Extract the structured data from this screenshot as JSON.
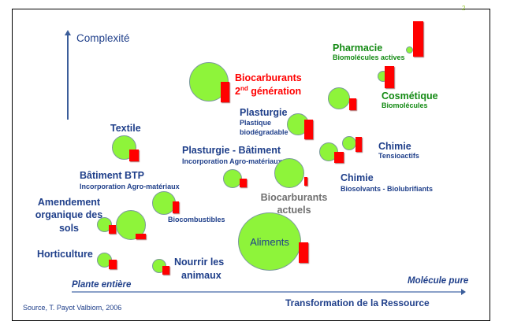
{
  "page_number": "2",
  "y_axis_label": "Complexité",
  "x_axis": {
    "left": "Plante entière",
    "right": "Molécule pure",
    "title": "Transformation de la Ressource"
  },
  "source": "Source, T. Payot Valbiom, 2006",
  "items": {
    "pharmacie": {
      "title": "Pharmacie",
      "sub": "Biomolécules actives"
    },
    "biocarb2": {
      "line1": "Biocarburants",
      "line2_prefix": "2",
      "line2_sup": "nd",
      "line2_rest": " génération"
    },
    "cosmetique": {
      "title": "Cosmétique",
      "sub": "Biomolécules"
    },
    "plasturgie": {
      "title": "Plasturgie",
      "sub1": "Plastique",
      "sub2": "biodégradable"
    },
    "textile": {
      "title": "Textile"
    },
    "chimie_tensio": {
      "title": "Chimie",
      "sub": "Tensioactifs"
    },
    "plasturgie_batiment": {
      "title": "Plasturgie - Bâtiment",
      "sub": "Incorporation Agro-matériaux"
    },
    "chimie_bio": {
      "title": "Chimie",
      "sub": "Biosolvants - Biolubrifiants"
    },
    "batiment_btp": {
      "title": "Bâtiment BTP",
      "sub": "Incorporation Agro-matériaux"
    },
    "biocombustibles": {
      "title": "Biocombustibles"
    },
    "biocarb_actuels": {
      "line1": "Biocarburants",
      "line2": "actuels"
    },
    "amendement": {
      "line1": "Amendement",
      "line2": "organique des",
      "line3": "sols"
    },
    "aliments": {
      "title": "Aliments"
    },
    "horticulture": {
      "title": "Horticulture"
    },
    "nourrir": {
      "line1": "Nourrir les",
      "line2": "animaux"
    }
  }
}
